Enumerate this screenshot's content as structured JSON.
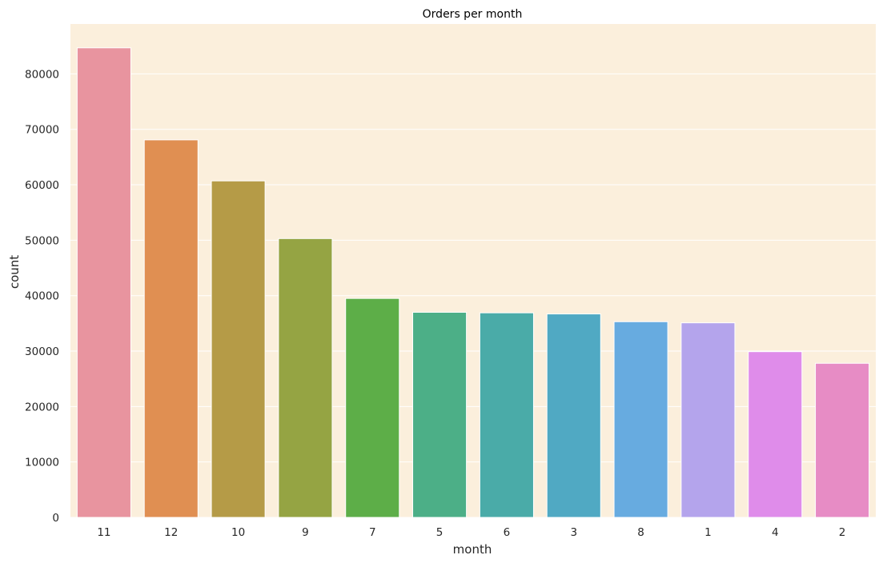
{
  "chart_data": {
    "type": "bar",
    "title": "Orders per month",
    "xlabel": "month",
    "ylabel": "count",
    "categories": [
      "11",
      "12",
      "10",
      "9",
      "7",
      "5",
      "6",
      "3",
      "8",
      "1",
      "4",
      "2"
    ],
    "values": [
      84700,
      68100,
      60700,
      50300,
      39500,
      37000,
      36900,
      36700,
      35300,
      35100,
      29900,
      27800
    ],
    "ylim": [
      0,
      89000
    ],
    "yticks": [
      0,
      10000,
      20000,
      30000,
      40000,
      50000,
      60000,
      70000,
      80000
    ],
    "grid": true,
    "background_color": "#fbefdc",
    "grid_color": "#ffffff",
    "bar_colors": [
      "#e8949f",
      "#e08f52",
      "#b59b47",
      "#95a443",
      "#5dae48",
      "#4caf87",
      "#4aaba8",
      "#50a9c3",
      "#67abe0",
      "#b4a4ec",
      "#df8cea",
      "#e78cc5"
    ]
  }
}
